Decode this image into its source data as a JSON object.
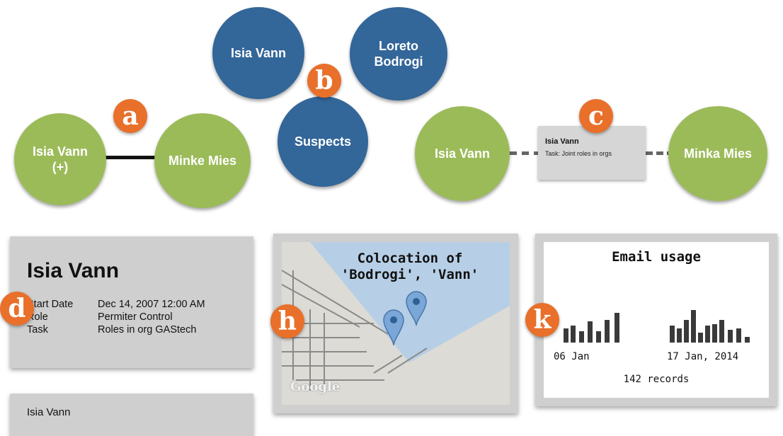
{
  "markers": {
    "a": "a",
    "b": "b",
    "c": "c",
    "d": "d",
    "h": "h",
    "k": "k"
  },
  "group_a": {
    "node1_line1": "Isia Vann",
    "node1_line2": "(+)",
    "node2": "Minke Mies"
  },
  "group_b": {
    "node1": "Isia Vann",
    "node2_line1": "Loreto",
    "node2_line2": "Bodrogi",
    "node3": "Suspects"
  },
  "group_c": {
    "node1": "Isia Vann",
    "edge_title": "Isia Vann",
    "edge_detail": "Task: Joint roles in orgs",
    "node2": "Minka Mies"
  },
  "card_d": {
    "name": "Isia Vann",
    "rows": [
      {
        "label": "Start Date",
        "value": "Dec 14, 2007 12:00 AM"
      },
      {
        "label": "Role",
        "value": "Permiter Control"
      },
      {
        "label": "Task",
        "value": "Roles in org GAStech"
      }
    ]
  },
  "card_d2": {
    "name": "Isia Vann"
  },
  "map_h": {
    "title_line1": "Colocation of",
    "title_line2": "'Bodrogi', 'Vann'",
    "watermark": "Google",
    "water_color": "#b6cfe6",
    "land_color": "#dcdbd5"
  },
  "chart_k": {
    "title": "Email usage",
    "label_left": "06 Jan",
    "label_right": "17 Jan, 2014",
    "records": "142 records"
  },
  "colors": {
    "green": "#9bbb59",
    "blue": "#336699",
    "orange": "#e8702a"
  }
}
